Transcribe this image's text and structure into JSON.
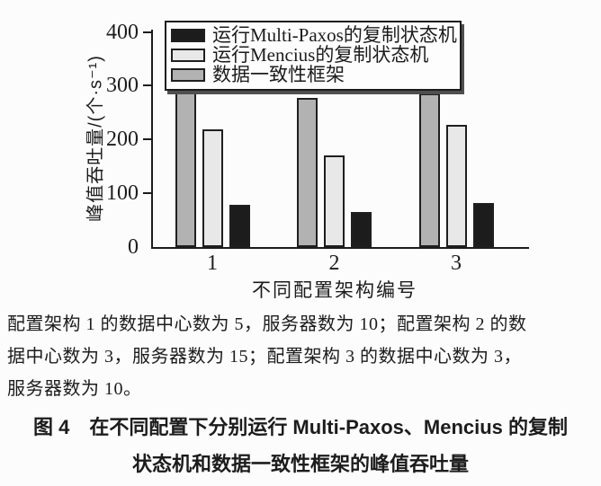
{
  "chart_data": {
    "type": "bar",
    "title": "",
    "xlabel": "不同配置架构编号",
    "ylabel": "峰值吞吐量/(个·s⁻¹)",
    "categories": [
      "1",
      "2",
      "3"
    ],
    "series": [
      {
        "name": "运行Multi-Paxos的复制状态机",
        "color": "#1c1c1c",
        "values": [
          79,
          65,
          82
        ]
      },
      {
        "name": "运行Mencius的复制状态机",
        "color": "#e8e8e8",
        "values": [
          219,
          171,
          227
        ]
      },
      {
        "name": "数据一致性框架",
        "color": "#b2b2b2",
        "values": [
          287,
          278,
          285
        ]
      }
    ],
    "ylim": [
      0,
      400
    ],
    "yticks": [
      0,
      100,
      200,
      300,
      400
    ],
    "grid": false,
    "legend_position": "top-left-inside",
    "group_bar_order_left_to_right": [
      "数据一致性框架",
      "运行Mencius的复制状态机",
      "运行Multi-Paxos的复制状态机"
    ]
  },
  "figure_note": {
    "lines": [
      "配置架构 1 的数据中心数为 5，服务器数为 10；配置架构 2 的数",
      "据中心数为 3，服务器数为 15；配置架构 3 的数据中心数为 3，",
      "服务器数为 10。"
    ]
  },
  "caption": {
    "line1": "图 4　在不同配置下分别运行 Multi-Paxos、Mencius 的复制",
    "line2": "状态机和数据一致性框架的峰值吞吐量"
  }
}
